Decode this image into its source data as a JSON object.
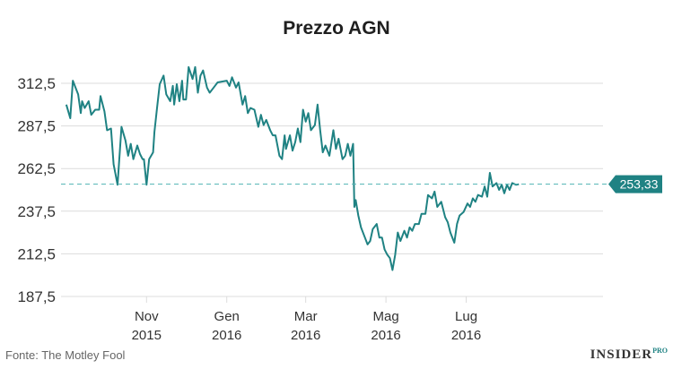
{
  "chart_data": {
    "type": "line",
    "title": "Prezzo AGN",
    "xlabel": "",
    "ylabel": "",
    "y_ticks": [
      "312,5",
      "287,5",
      "262,5",
      "237,5",
      "212,5",
      "187,5"
    ],
    "y_tick_values": [
      312.5,
      287.5,
      262.5,
      237.5,
      212.5,
      187.5
    ],
    "ylim": [
      187.5,
      325
    ],
    "x_ticks": [
      {
        "month": "Nov",
        "year": "2015",
        "date": "2015-11-01"
      },
      {
        "month": "Gen",
        "year": "2016",
        "date": "2016-01-01"
      },
      {
        "month": "Mar",
        "year": "2016",
        "date": "2016-03-01"
      },
      {
        "month": "Mag",
        "year": "2016",
        "date": "2016-05-01"
      },
      {
        "month": "Lug",
        "year": "2016",
        "date": "2016-07-01"
      }
    ],
    "xlim": [
      "2015-08-28",
      "2016-10-13"
    ],
    "grid": true,
    "reference_value": 253.33,
    "reference_label": "253,33",
    "series": [
      {
        "color": "#1f8283",
        "points": [
          [
            "2015-09-01",
            300
          ],
          [
            "2015-09-04",
            292
          ],
          [
            "2015-09-06",
            314
          ],
          [
            "2015-09-10",
            306
          ],
          [
            "2015-09-12",
            295
          ],
          [
            "2015-09-13",
            302
          ],
          [
            "2015-09-15",
            298
          ],
          [
            "2015-09-18",
            302
          ],
          [
            "2015-09-20",
            294
          ],
          [
            "2015-09-23",
            297
          ],
          [
            "2015-09-26",
            297
          ],
          [
            "2015-09-27",
            305
          ],
          [
            "2015-09-30",
            296
          ],
          [
            "2015-10-02",
            285
          ],
          [
            "2015-10-05",
            286
          ],
          [
            "2015-10-07",
            265
          ],
          [
            "2015-10-10",
            253
          ],
          [
            "2015-10-13",
            287
          ],
          [
            "2015-10-16",
            279
          ],
          [
            "2015-10-18",
            270
          ],
          [
            "2015-10-20",
            277
          ],
          [
            "2015-10-22",
            268
          ],
          [
            "2015-10-25",
            276
          ],
          [
            "2015-10-27",
            271
          ],
          [
            "2015-10-29",
            268
          ],
          [
            "2015-10-30",
            268
          ],
          [
            "2015-11-01",
            253
          ],
          [
            "2015-11-03",
            268
          ],
          [
            "2015-11-06",
            272
          ],
          [
            "2015-11-07",
            284
          ],
          [
            "2015-11-09",
            298
          ],
          [
            "2015-11-11",
            312
          ],
          [
            "2015-11-14",
            317
          ],
          [
            "2015-11-16",
            306
          ],
          [
            "2015-11-19",
            302
          ],
          [
            "2015-11-21",
            311
          ],
          [
            "2015-11-22",
            300
          ],
          [
            "2015-11-24",
            312
          ],
          [
            "2015-11-26",
            302
          ],
          [
            "2015-11-28",
            314
          ],
          [
            "2015-11-29",
            303
          ],
          [
            "2015-12-01",
            303
          ],
          [
            "2015-12-03",
            322
          ],
          [
            "2015-12-06",
            315
          ],
          [
            "2015-12-08",
            322
          ],
          [
            "2015-12-10",
            307
          ],
          [
            "2015-12-12",
            317
          ],
          [
            "2015-12-14",
            320
          ],
          [
            "2015-12-17",
            310
          ],
          [
            "2015-12-19",
            307
          ],
          [
            "2015-12-22",
            310
          ],
          [
            "2015-12-25",
            313
          ],
          [
            "2016-01-01",
            314
          ],
          [
            "2016-01-03",
            311
          ],
          [
            "2016-01-05",
            316
          ],
          [
            "2016-01-08",
            310
          ],
          [
            "2016-01-10",
            313
          ],
          [
            "2016-01-13",
            300
          ],
          [
            "2016-01-15",
            305
          ],
          [
            "2016-01-17",
            295
          ],
          [
            "2016-01-19",
            298
          ],
          [
            "2016-01-22",
            297
          ],
          [
            "2016-01-25",
            287
          ],
          [
            "2016-01-27",
            294
          ],
          [
            "2016-01-29",
            288
          ],
          [
            "2016-01-31",
            291
          ],
          [
            "2016-02-03",
            285
          ],
          [
            "2016-02-05",
            282
          ],
          [
            "2016-02-07",
            282
          ],
          [
            "2016-02-10",
            270
          ],
          [
            "2016-02-12",
            268
          ],
          [
            "2016-02-14",
            282
          ],
          [
            "2016-02-15",
            274
          ],
          [
            "2016-02-18",
            282
          ],
          [
            "2016-02-20",
            273
          ],
          [
            "2016-02-22",
            278
          ],
          [
            "2016-02-24",
            286
          ],
          [
            "2016-02-26",
            278
          ],
          [
            "2016-02-28",
            297
          ],
          [
            "2016-03-01",
            290
          ],
          [
            "2016-03-03",
            295
          ],
          [
            "2016-03-05",
            285
          ],
          [
            "2016-03-08",
            288
          ],
          [
            "2016-03-10",
            300
          ],
          [
            "2016-03-12",
            285
          ],
          [
            "2016-03-14",
            272
          ],
          [
            "2016-03-16",
            276
          ],
          [
            "2016-03-19",
            270
          ],
          [
            "2016-03-22",
            285
          ],
          [
            "2016-03-24",
            274
          ],
          [
            "2016-03-26",
            280
          ],
          [
            "2016-03-29",
            268
          ],
          [
            "2016-03-31",
            270
          ],
          [
            "2016-04-02",
            277
          ],
          [
            "2016-04-04",
            270
          ],
          [
            "2016-04-06",
            277
          ],
          [
            "2016-04-07",
            240
          ],
          [
            "2016-04-08",
            244
          ],
          [
            "2016-04-10",
            235
          ],
          [
            "2016-04-12",
            228
          ],
          [
            "2016-04-15",
            222
          ],
          [
            "2016-04-17",
            218
          ],
          [
            "2016-04-19",
            220
          ],
          [
            "2016-04-21",
            227
          ],
          [
            "2016-04-24",
            230
          ],
          [
            "2016-04-26",
            222
          ],
          [
            "2016-04-28",
            222
          ],
          [
            "2016-04-30",
            215
          ],
          [
            "2016-05-02",
            212
          ],
          [
            "2016-05-04",
            210
          ],
          [
            "2016-05-06",
            203
          ],
          [
            "2016-05-08",
            212
          ],
          [
            "2016-05-10",
            225
          ],
          [
            "2016-05-12",
            220
          ],
          [
            "2016-05-15",
            226
          ],
          [
            "2016-05-17",
            222
          ],
          [
            "2016-05-19",
            228
          ],
          [
            "2016-05-21",
            226
          ],
          [
            "2016-05-23",
            230
          ],
          [
            "2016-05-26",
            230
          ],
          [
            "2016-05-28",
            236
          ],
          [
            "2016-05-31",
            236
          ],
          [
            "2016-06-02",
            247
          ],
          [
            "2016-06-05",
            245
          ],
          [
            "2016-06-07",
            249
          ],
          [
            "2016-06-09",
            240
          ],
          [
            "2016-06-12",
            243
          ],
          [
            "2016-06-15",
            234
          ],
          [
            "2016-06-17",
            231
          ],
          [
            "2016-06-19",
            225
          ],
          [
            "2016-06-22",
            219
          ],
          [
            "2016-06-24",
            230
          ],
          [
            "2016-06-26",
            235
          ],
          [
            "2016-06-29",
            237
          ],
          [
            "2016-07-02",
            242
          ],
          [
            "2016-07-04",
            240
          ],
          [
            "2016-07-06",
            245
          ],
          [
            "2016-07-08",
            243
          ],
          [
            "2016-07-10",
            247
          ],
          [
            "2016-07-13",
            246
          ],
          [
            "2016-07-15",
            252
          ],
          [
            "2016-07-17",
            246
          ],
          [
            "2016-07-19",
            260
          ],
          [
            "2016-07-21",
            252
          ],
          [
            "2016-07-24",
            254
          ],
          [
            "2016-07-26",
            250
          ],
          [
            "2016-07-28",
            253
          ],
          [
            "2016-07-30",
            248
          ],
          [
            "2016-08-01",
            253
          ],
          [
            "2016-08-03",
            250
          ],
          [
            "2016-08-05",
            254
          ],
          [
            "2016-08-08",
            253
          ],
          [
            "2016-08-10",
            253.33
          ]
        ]
      }
    ]
  },
  "footer": {
    "source": "Fonte: The Motley Fool",
    "brand": "INSIDER",
    "brand_sup": "PRO"
  }
}
